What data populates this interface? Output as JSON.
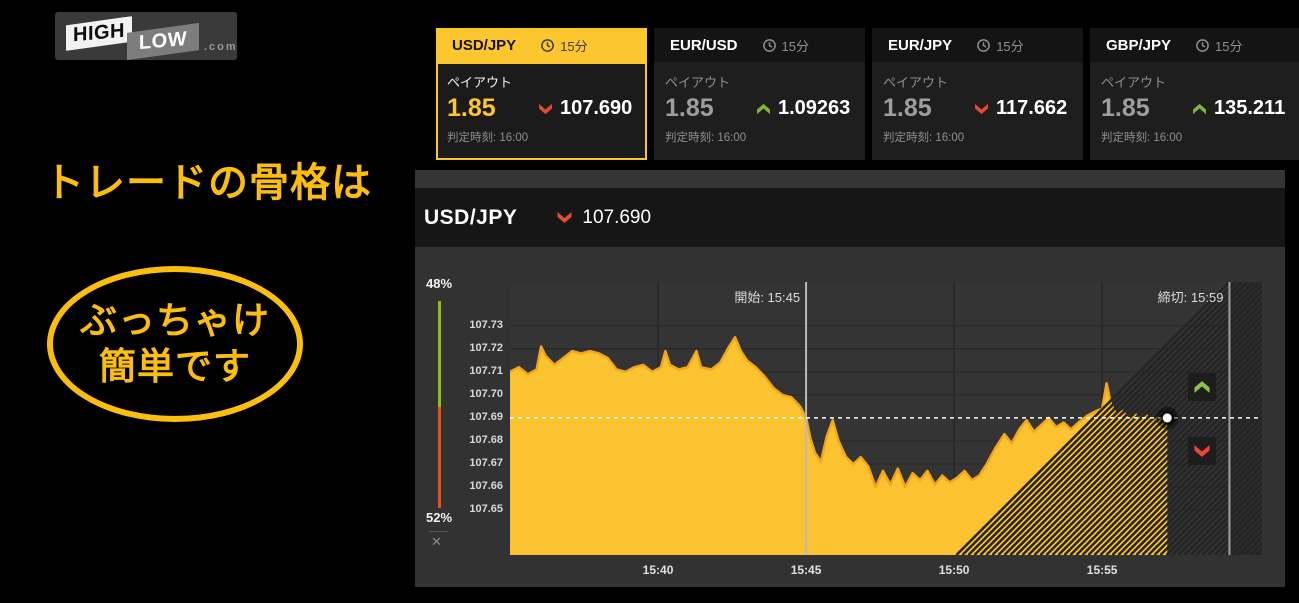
{
  "brand": {
    "high": "HIGH",
    "low": "LOW",
    "com": ".com"
  },
  "promo": {
    "headline": "トレードの骨格は",
    "oval_line1": "ぶっちゃけ",
    "oval_line2": "簡単です",
    "accent": "#fcbe0e"
  },
  "tabs": [
    {
      "pair": "USD/JPY",
      "duration": "15分",
      "payout_label": "ペイアウト",
      "payout": "1.85",
      "price": "107.690",
      "direction": "down",
      "expiry": "判定時刻: 16:00",
      "active": true
    },
    {
      "pair": "EUR/USD",
      "duration": "15分",
      "payout_label": "ペイアウト",
      "payout": "1.85",
      "price": "1.09263",
      "direction": "up",
      "expiry": "判定時刻: 16:00",
      "active": false
    },
    {
      "pair": "EUR/JPY",
      "duration": "15分",
      "payout_label": "ペイアウト",
      "payout": "1.85",
      "price": "117.662",
      "direction": "down",
      "expiry": "判定時刻: 16:00",
      "active": false
    },
    {
      "pair": "GBP/JPY",
      "duration": "15分",
      "payout_label": "ペイアウト",
      "payout": "1.85",
      "price": "135.211",
      "direction": "up",
      "expiry": "判定時刻: 16:00",
      "active": false
    }
  ],
  "chart_header": {
    "pair": "USD/JPY",
    "price": "107.690",
    "direction": "down"
  },
  "sentiment": {
    "high_pct": "48%",
    "low_pct": "52%",
    "close_icon": "✕",
    "green": "#8cc10c",
    "red": "#e8501b"
  },
  "chart_data": {
    "type": "area",
    "title": "USD/JPY 15分 price chart",
    "x_unit": "minutes after 15:35",
    "x_domain": [
      0,
      25.4
    ],
    "y_domain": [
      107.6305,
      107.749
    ],
    "y_ticks": [
      107.73,
      107.72,
      107.71,
      107.7,
      107.69,
      107.68,
      107.67,
      107.66,
      107.65
    ],
    "x_ticks": [
      {
        "t": 5,
        "label": "15:40"
      },
      {
        "t": 10,
        "label": "15:45"
      },
      {
        "t": 15,
        "label": "15:50"
      },
      {
        "t": 20,
        "label": "15:55"
      }
    ],
    "start_marker": {
      "t": 10,
      "label": "開始: 15:45"
    },
    "deadline_marker": {
      "t": 24.3,
      "label": "締切: 15:59"
    },
    "current_price": 107.69,
    "fill": "#fcc331",
    "stroke": "#f2a51f",
    "grid": true,
    "legend": "none",
    "series": [
      [
        0,
        107.71
      ],
      [
        0.3,
        107.712
      ],
      [
        0.6,
        107.709
      ],
      [
        0.9,
        107.711
      ],
      [
        1.05,
        107.721
      ],
      [
        1.2,
        107.717
      ],
      [
        1.5,
        107.713
      ],
      [
        1.8,
        107.716
      ],
      [
        2.1,
        107.719
      ],
      [
        2.4,
        107.718
      ],
      [
        2.7,
        107.719
      ],
      [
        3.0,
        107.718
      ],
      [
        3.3,
        107.716
      ],
      [
        3.6,
        107.711
      ],
      [
        3.9,
        107.71
      ],
      [
        4.2,
        107.712
      ],
      [
        4.5,
        107.713
      ],
      [
        4.8,
        107.71
      ],
      [
        5.1,
        107.712
      ],
      [
        5.25,
        107.719
      ],
      [
        5.4,
        107.713
      ],
      [
        5.7,
        107.711
      ],
      [
        6.0,
        107.712
      ],
      [
        6.3,
        107.719
      ],
      [
        6.45,
        107.712
      ],
      [
        6.8,
        107.711
      ],
      [
        7.1,
        107.714
      ],
      [
        7.4,
        107.721
      ],
      [
        7.6,
        107.725
      ],
      [
        7.8,
        107.719
      ],
      [
        8.0,
        107.715
      ],
      [
        8.3,
        107.712
      ],
      [
        8.6,
        107.708
      ],
      [
        8.9,
        107.703
      ],
      [
        9.2,
        107.7
      ],
      [
        9.5,
        107.699
      ],
      [
        9.8,
        107.695
      ],
      [
        10.0,
        107.69
      ],
      [
        10.15,
        107.681
      ],
      [
        10.3,
        107.675
      ],
      [
        10.5,
        107.671
      ],
      [
        10.7,
        107.682
      ],
      [
        10.9,
        107.689
      ],
      [
        11.1,
        107.68
      ],
      [
        11.35,
        107.673
      ],
      [
        11.6,
        107.67
      ],
      [
        11.85,
        107.673
      ],
      [
        12.1,
        107.669
      ],
      [
        12.35,
        107.66
      ],
      [
        12.6,
        107.667
      ],
      [
        12.85,
        107.661
      ],
      [
        13.1,
        107.668
      ],
      [
        13.35,
        107.66
      ],
      [
        13.6,
        107.666
      ],
      [
        13.85,
        107.663
      ],
      [
        14.1,
        107.667
      ],
      [
        14.35,
        107.661
      ],
      [
        14.6,
        107.665
      ],
      [
        14.85,
        107.662
      ],
      [
        15.1,
        107.664
      ],
      [
        15.35,
        107.667
      ],
      [
        15.6,
        107.663
      ],
      [
        15.85,
        107.665
      ],
      [
        16.1,
        107.67
      ],
      [
        16.4,
        107.677
      ],
      [
        16.7,
        107.683
      ],
      [
        16.95,
        107.679
      ],
      [
        17.2,
        107.685
      ],
      [
        17.45,
        107.689
      ],
      [
        17.7,
        107.684
      ],
      [
        17.95,
        107.687
      ],
      [
        18.2,
        107.69
      ],
      [
        18.45,
        107.686
      ],
      [
        18.7,
        107.688
      ],
      [
        18.95,
        107.685
      ],
      [
        19.2,
        107.688
      ],
      [
        19.5,
        107.691
      ],
      [
        19.8,
        107.693
      ],
      [
        20.0,
        107.694
      ],
      [
        20.15,
        107.705
      ],
      [
        20.3,
        107.696
      ],
      [
        20.5,
        107.691
      ],
      [
        20.7,
        107.693
      ],
      [
        20.9,
        107.689
      ],
      [
        21.1,
        107.692
      ],
      [
        21.3,
        107.689
      ],
      [
        21.5,
        107.691
      ],
      [
        21.7,
        107.688
      ],
      [
        21.9,
        107.69
      ],
      [
        22.1,
        107.689
      ],
      [
        22.2,
        107.69
      ]
    ]
  }
}
